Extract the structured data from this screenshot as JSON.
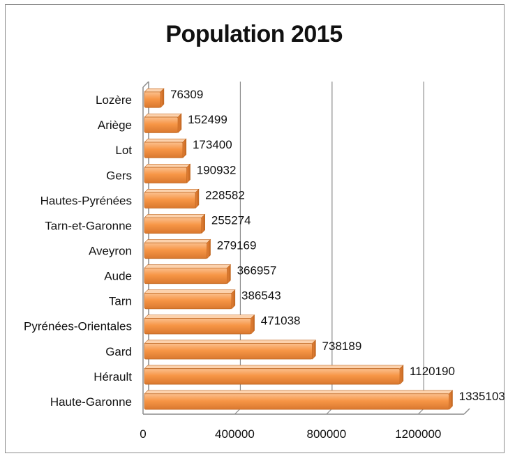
{
  "chart_data": {
    "type": "bar",
    "orientation": "horizontal",
    "title": "Population 2015",
    "xlabel": "",
    "ylabel": "",
    "categories": [
      "Lozère",
      "Ariège",
      "Lot",
      "Gers",
      "Hautes-Pyrénées",
      "Tarn-et-Garonne",
      "Aveyron",
      "Aude",
      "Tarn",
      "Pyrénées-Orientales",
      "Gard",
      "Hérault",
      "Haute-Garonne"
    ],
    "values": [
      76309,
      152499,
      173400,
      190932,
      228582,
      255274,
      279169,
      366957,
      386543,
      471038,
      738189,
      1120190,
      1335103
    ],
    "value_labels": [
      "76309",
      "152499",
      "173400",
      "190932",
      "228582",
      "255274",
      "279169",
      "366957",
      "386543",
      "471038",
      "738189",
      "1120190",
      "1335103"
    ],
    "xlim": [
      0,
      1400000
    ],
    "xticks": [
      0,
      400000,
      800000,
      1200000
    ],
    "xtick_labels": [
      "0",
      "400000",
      "800000",
      "1200000"
    ],
    "grid": true,
    "legend": "none",
    "bar_color": "#f79646",
    "bar_edge_color": "#c0661f",
    "grid_color": "#8c8c8c"
  }
}
